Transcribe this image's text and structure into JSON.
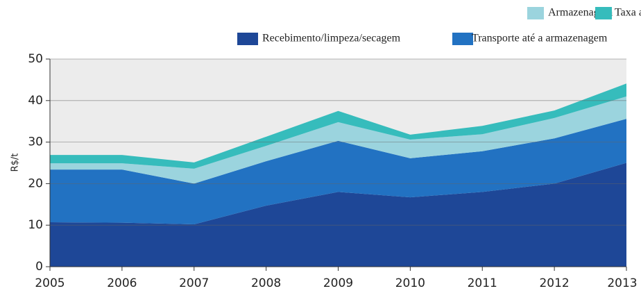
{
  "chart_data": {
    "type": "stacked_area",
    "y_label": "R$/t",
    "x": [
      2005,
      2006,
      2007,
      2008,
      2009,
      2010,
      2011,
      2012,
      2013
    ],
    "xlim": [
      2005,
      2013
    ],
    "xticks": [
      2005,
      2006,
      2007,
      2008,
      2009,
      2010,
      2011,
      2012,
      2013
    ],
    "ylim": [
      0,
      50
    ],
    "yticks": [
      0,
      10,
      20,
      30,
      40,
      50
    ],
    "grid": true,
    "series": [
      {
        "name": "Recebimento/limpeza/secagem",
        "color": "#1e4797",
        "values": [
          10.7,
          10.6,
          10.2,
          14.7,
          18.0,
          16.7,
          18.0,
          20.0,
          25.0
        ]
      },
      {
        "name": "Transporte até a armazenagem",
        "color": "#2272c2",
        "values": [
          12.7,
          12.8,
          9.8,
          10.7,
          12.3,
          9.4,
          9.8,
          10.9,
          10.6
        ]
      },
      {
        "name": "Armazenagem",
        "color": "#9bd4de",
        "values": [
          1.5,
          1.5,
          3.6,
          3.7,
          4.5,
          4.5,
          4.1,
          4.9,
          5.4
        ]
      },
      {
        "name": "Taxa administrativa",
        "color": "#36bcbc",
        "values": [
          2.0,
          2.0,
          1.5,
          2.2,
          2.7,
          1.2,
          2.0,
          1.8,
          3.1
        ]
      }
    ]
  }
}
